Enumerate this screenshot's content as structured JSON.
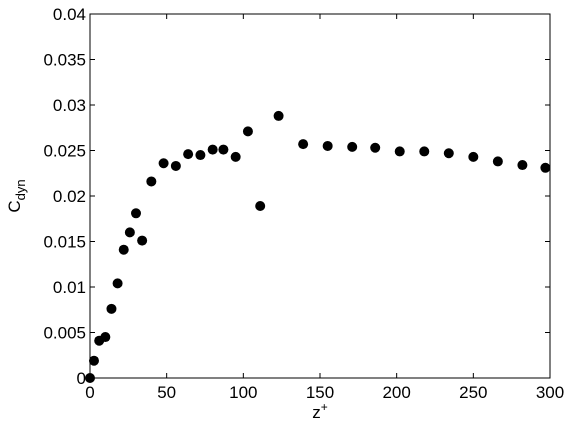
{
  "chart_data": {
    "type": "scatter",
    "xlabel": {
      "text": "z",
      "sup": "+"
    },
    "ylabel": {
      "text": "C",
      "sub": "dyn"
    },
    "x": [
      0,
      2.6,
      6,
      10,
      14,
      18,
      22,
      26,
      30,
      34,
      40,
      48,
      56,
      64,
      72,
      80,
      87,
      95,
      103,
      111,
      123,
      139,
      155,
      171,
      186,
      202,
      218,
      234,
      250,
      266,
      282,
      297
    ],
    "values": [
      0,
      0.0019,
      0.0041,
      0.0045,
      0.0076,
      0.0104,
      0.0141,
      0.016,
      0.0181,
      0.0151,
      0.0216,
      0.0236,
      0.0233,
      0.0246,
      0.0245,
      0.0251,
      0.0251,
      0.0243,
      0.0271,
      0.0189,
      0.0288,
      0.0257,
      0.0255,
      0.0254,
      0.0253,
      0.0249,
      0.0249,
      0.0247,
      0.0243,
      0.0238,
      0.0234,
      0.0231
    ],
    "color": "#000000",
    "xlim": [
      0,
      300
    ],
    "xticks": [
      0,
      50,
      100,
      150,
      200,
      250,
      300
    ],
    "ylim": [
      0,
      0.04
    ],
    "yticks": [
      0,
      0.005,
      0.01,
      0.015,
      0.02,
      0.025,
      0.03,
      0.035,
      0.04
    ]
  }
}
